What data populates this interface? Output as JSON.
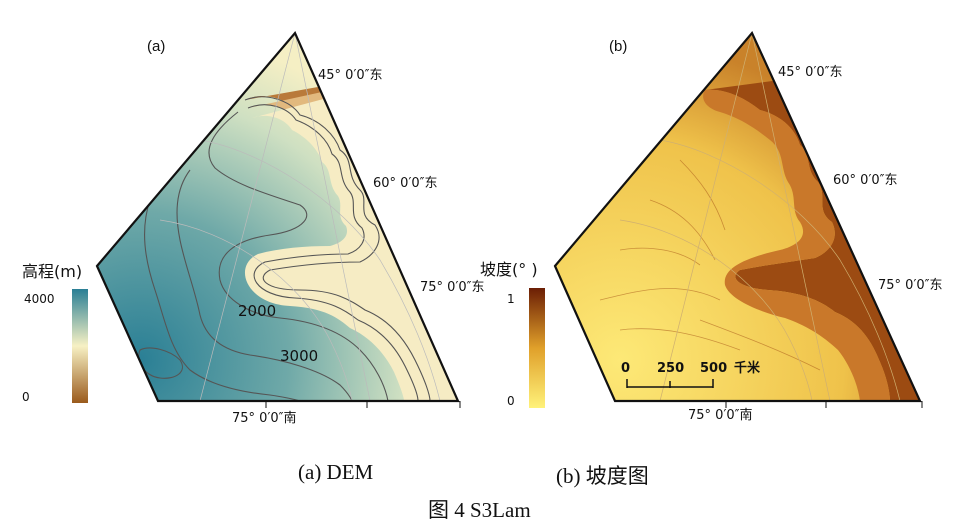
{
  "panels": [
    {
      "label": "(a)",
      "caption": "(a) DEM",
      "legend": {
        "title": "高程(m)",
        "max_label": "4000",
        "min_label": "0"
      },
      "contour_labels": [
        "2000",
        "3000"
      ],
      "graticule_labels": [
        "45° 0′0″东",
        "60° 0′0″东",
        "75° 0′0″东",
        "75° 0′0″南"
      ]
    },
    {
      "label": "(b)",
      "caption": "(b)  坡度图",
      "legend": {
        "title": "坡度(° )",
        "max_label": "1",
        "min_label": "0"
      },
      "scale_bar": {
        "labels": [
          "0",
          "250",
          "500"
        ],
        "unit": "千米"
      },
      "graticule_labels": [
        "45° 0′0″东",
        "60° 0′0″东",
        "75° 0′0″东",
        "75° 0′0″南"
      ]
    }
  ],
  "figure_caption": "图 4 S3Lam",
  "colors": {
    "dem_high": "#2a7f95",
    "dem_mid": "#f7f1c4",
    "dem_low": "#9a5a1c",
    "slope_low": "#fff27a",
    "slope_high": "#6b1e05",
    "contour": "#555555"
  }
}
